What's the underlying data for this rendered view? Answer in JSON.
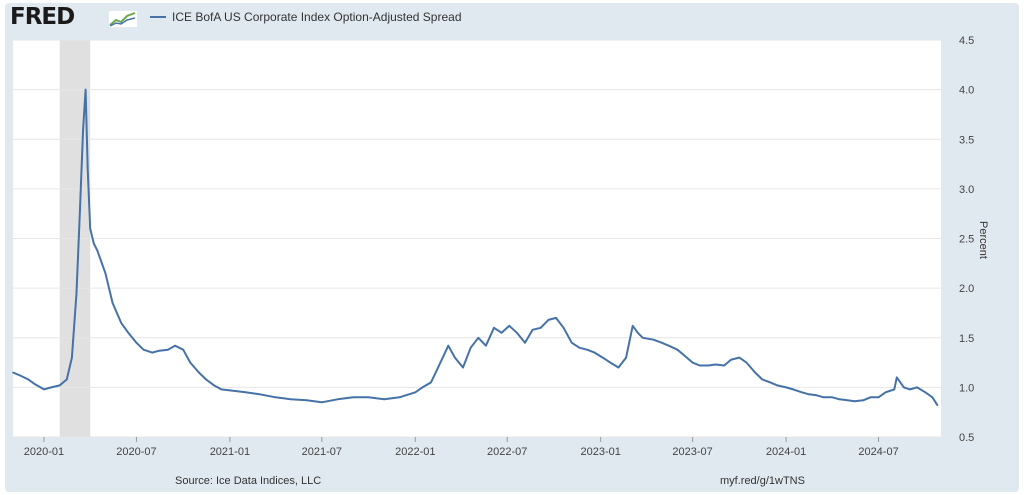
{
  "logo": {
    "text": "FRED",
    "mark_icon": "fred-chart-icon"
  },
  "source": "Source: Ice Data Indices, LLC",
  "link": "myf.red/g/1wTNS",
  "colors": {
    "line": "#4572a7",
    "recession": "#e0e0e0",
    "background": "#e1e9f0"
  },
  "chart_data": {
    "type": "line",
    "title": "",
    "ylabel": "Percent",
    "xlabel": "",
    "ylim": [
      0.5,
      4.5
    ],
    "y_ticks": [
      "0.5",
      "1.0",
      "1.5",
      "2.0",
      "2.5",
      "3.0",
      "3.5",
      "4.0",
      "4.5"
    ],
    "x_ticks": [
      "2020-01",
      "2020-07",
      "2021-01",
      "2021-07",
      "2022-01",
      "2022-07",
      "2023-01",
      "2023-07",
      "2024-01",
      "2024-07"
    ],
    "xlim": [
      "2019-11-01",
      "2024-11-01"
    ],
    "grid": true,
    "legend_position": "top-left",
    "recession_shading": [
      {
        "start": "2020-02-01",
        "end": "2020-04-01"
      }
    ],
    "series": [
      {
        "name": "ICE BofA US Corporate Index Option-Adjusted Spread",
        "x": [
          "2019-11-01",
          "2019-11-15",
          "2019-12-01",
          "2019-12-15",
          "2020-01-01",
          "2020-01-15",
          "2020-02-01",
          "2020-02-15",
          "2020-02-25",
          "2020-03-05",
          "2020-03-12",
          "2020-03-18",
          "2020-03-23",
          "2020-03-27",
          "2020-04-01",
          "2020-04-08",
          "2020-04-15",
          "2020-05-01",
          "2020-05-15",
          "2020-06-01",
          "2020-06-15",
          "2020-07-01",
          "2020-07-15",
          "2020-08-01",
          "2020-08-15",
          "2020-09-01",
          "2020-09-15",
          "2020-10-01",
          "2020-10-15",
          "2020-11-01",
          "2020-11-15",
          "2020-12-01",
          "2020-12-15",
          "2021-01-01",
          "2021-02-01",
          "2021-03-01",
          "2021-04-01",
          "2021-05-01",
          "2021-06-01",
          "2021-07-01",
          "2021-08-01",
          "2021-09-01",
          "2021-10-01",
          "2021-11-01",
          "2021-12-01",
          "2022-01-01",
          "2022-01-15",
          "2022-02-01",
          "2022-02-15",
          "2022-03-07",
          "2022-03-20",
          "2022-04-05",
          "2022-04-20",
          "2022-05-05",
          "2022-05-20",
          "2022-06-05",
          "2022-06-20",
          "2022-07-05",
          "2022-07-20",
          "2022-08-05",
          "2022-08-20",
          "2022-09-05",
          "2022-09-20",
          "2022-10-05",
          "2022-10-20",
          "2022-11-05",
          "2022-11-20",
          "2022-12-05",
          "2022-12-20",
          "2023-01-05",
          "2023-01-20",
          "2023-02-05",
          "2023-02-20",
          "2023-03-05",
          "2023-03-15",
          "2023-03-25",
          "2023-04-15",
          "2023-05-01",
          "2023-05-15",
          "2023-06-01",
          "2023-06-15",
          "2023-07-01",
          "2023-07-15",
          "2023-08-01",
          "2023-08-15",
          "2023-09-01",
          "2023-09-15",
          "2023-10-01",
          "2023-10-15",
          "2023-11-01",
          "2023-11-15",
          "2023-12-01",
          "2023-12-15",
          "2024-01-01",
          "2024-01-15",
          "2024-02-01",
          "2024-02-15",
          "2024-03-01",
          "2024-03-15",
          "2024-04-01",
          "2024-04-15",
          "2024-05-01",
          "2024-05-15",
          "2024-06-01",
          "2024-06-15",
          "2024-07-01",
          "2024-07-15",
          "2024-08-01",
          "2024-08-06",
          "2024-08-20",
          "2024-09-01",
          "2024-09-15",
          "2024-10-01",
          "2024-10-15",
          "2024-10-25"
        ],
        "values": [
          1.15,
          1.12,
          1.08,
          1.03,
          0.98,
          1.0,
          1.02,
          1.08,
          1.3,
          1.95,
          2.8,
          3.6,
          4.0,
          3.2,
          2.6,
          2.45,
          2.38,
          2.15,
          1.85,
          1.65,
          1.55,
          1.45,
          1.38,
          1.35,
          1.37,
          1.38,
          1.42,
          1.38,
          1.25,
          1.15,
          1.08,
          1.02,
          0.98,
          0.97,
          0.95,
          0.93,
          0.9,
          0.88,
          0.87,
          0.85,
          0.88,
          0.9,
          0.9,
          0.88,
          0.9,
          0.95,
          1.0,
          1.05,
          1.2,
          1.42,
          1.3,
          1.2,
          1.4,
          1.5,
          1.42,
          1.6,
          1.55,
          1.62,
          1.55,
          1.45,
          1.58,
          1.6,
          1.68,
          1.7,
          1.6,
          1.45,
          1.4,
          1.38,
          1.35,
          1.3,
          1.25,
          1.2,
          1.3,
          1.62,
          1.55,
          1.5,
          1.48,
          1.45,
          1.42,
          1.38,
          1.32,
          1.25,
          1.22,
          1.22,
          1.23,
          1.22,
          1.28,
          1.3,
          1.25,
          1.15,
          1.08,
          1.05,
          1.02,
          1.0,
          0.98,
          0.95,
          0.93,
          0.92,
          0.9,
          0.9,
          0.88,
          0.87,
          0.86,
          0.87,
          0.9,
          0.9,
          0.95,
          0.98,
          1.1,
          1.0,
          0.98,
          1.0,
          0.95,
          0.9,
          0.82
        ]
      }
    ]
  }
}
